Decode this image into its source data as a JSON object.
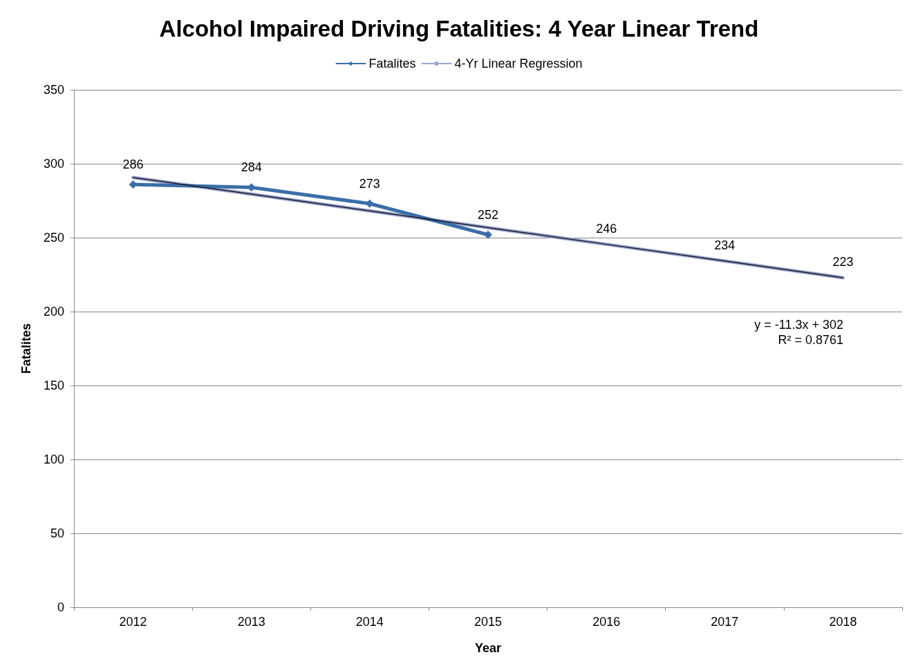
{
  "chart_data": {
    "type": "line",
    "title": "Alcohol Impaired Driving Fatalities: 4 Year Linear Trend",
    "xlabel": "Year",
    "ylabel": "Fatalites",
    "categories": [
      "2012",
      "2013",
      "2014",
      "2015",
      "2016",
      "2017",
      "2018"
    ],
    "series": [
      {
        "name": "Fatalites",
        "color": "#3b6ea8",
        "values": [
          286,
          284,
          273,
          252,
          null,
          null,
          null
        ],
        "value_labels": [
          "286",
          "284",
          "273",
          "252",
          null,
          null,
          null
        ],
        "line_style": "solid"
      },
      {
        "name": "4-Yr Linear Regression",
        "color": "#9aa5d8",
        "values": [
          290.7,
          279.4,
          268.1,
          256.8,
          245.5,
          234.2,
          222.9
        ],
        "value_labels": [
          null,
          null,
          null,
          null,
          "246",
          "234",
          "223"
        ],
        "marker": "none"
      },
      {
        "color": "#1a1a1a",
        "values": [
          290.7,
          279.4,
          268.1,
          256.8,
          245.5,
          234.2,
          222.9
        ],
        "marker": "none"
      }
    ],
    "annotations": [
      "y = -11.3x + 302",
      "R² = 0.8761"
    ],
    "ylim": [
      0,
      350
    ],
    "yticks": [
      0,
      50,
      100,
      150,
      200,
      250,
      300,
      350
    ],
    "grid": "y",
    "legend": "top",
    "marker": "diamond"
  }
}
